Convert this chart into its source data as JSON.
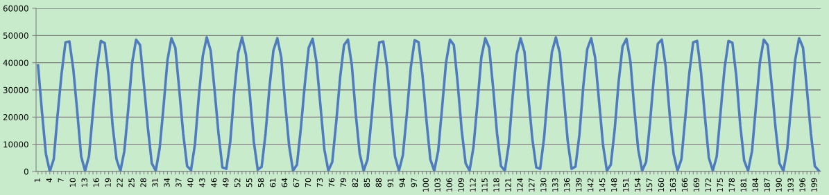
{
  "chart_data": {
    "type": "line",
    "categories": [
      "1",
      null,
      null,
      "4",
      null,
      null,
      "7",
      null,
      null,
      "10",
      null,
      null,
      "13",
      null,
      null,
      "16",
      null,
      null,
      "19",
      null,
      null,
      "22",
      null,
      null,
      "25",
      null,
      null,
      "28",
      null,
      null,
      "31",
      null,
      null,
      "34",
      null,
      null,
      "37",
      null,
      null,
      "40",
      null,
      null,
      "43",
      null,
      null,
      "46",
      null,
      null,
      "49",
      null,
      null,
      "52",
      null,
      null,
      "55",
      null,
      null,
      "58",
      null,
      null,
      "61",
      null,
      null,
      "64",
      null,
      null,
      "67",
      null,
      null,
      "70",
      null,
      null,
      "73",
      null,
      null,
      "76",
      null,
      null,
      "79",
      null,
      null,
      "82",
      null,
      null,
      "85",
      null,
      null,
      "88",
      null,
      null,
      "91",
      null,
      null,
      "94",
      null,
      null,
      "97",
      null,
      null,
      "100",
      null,
      null,
      "103",
      null,
      null,
      "106",
      null,
      null,
      "109",
      null,
      null,
      "112",
      null,
      null,
      "115",
      null,
      null,
      "118",
      null,
      null,
      "121",
      null,
      null,
      "124",
      null,
      null,
      "127",
      null,
      null,
      "130",
      null,
      null,
      "133",
      null,
      null,
      "136",
      null,
      null,
      "139",
      null,
      null,
      "142",
      null,
      null,
      "145",
      null,
      null,
      "148",
      null,
      null,
      "151",
      null,
      null,
      "154",
      null,
      null,
      "157",
      null,
      null,
      "160",
      null,
      null,
      "163",
      null,
      null,
      "166",
      null,
      null,
      "169",
      null,
      null,
      "172",
      null,
      null,
      "175",
      null,
      null,
      "178",
      null,
      null,
      "181",
      null,
      null,
      "184",
      null,
      null,
      "187",
      null,
      null,
      "190",
      null,
      null,
      "193",
      null,
      null,
      "196",
      null,
      null,
      "199",
      null
    ],
    "series": [
      {
        "color": "#4f7bbf",
        "values": [
          39000,
          22000,
          6500,
          0,
          4500,
          21000,
          36000,
          47500,
          47800,
          37500,
          22000,
          5500,
          200,
          5800,
          22000,
          38000,
          48000,
          47200,
          35000,
          17000,
          4500,
          200,
          7500,
          23000,
          40000,
          48500,
          46500,
          32000,
          16000,
          3000,
          300,
          8500,
          24000,
          41000,
          49000,
          45500,
          30000,
          14000,
          2000,
          500,
          10000,
          28000,
          42500,
          49300,
          44500,
          30000,
          14000,
          1500,
          1000,
          11000,
          29000,
          43500,
          49300,
          43000,
          28000,
          11000,
          700,
          1700,
          14000,
          31000,
          44500,
          49000,
          42000,
          25000,
          9500,
          300,
          2500,
          16000,
          32000,
          45500,
          48800,
          40000,
          24000,
          8000,
          300,
          3500,
          18000,
          34500,
          46500,
          48500,
          39000,
          21000,
          6500,
          300,
          4500,
          19500,
          36000,
          47500,
          47800,
          38000,
          21000,
          5500,
          300,
          6000,
          21000,
          38000,
          48300,
          47500,
          35500,
          19000,
          4500,
          300,
          7500,
          23500,
          40000,
          48500,
          46500,
          32000,
          15000,
          3000,
          300,
          9000,
          25000,
          42000,
          49000,
          45500,
          31000,
          14000,
          2000,
          300,
          10000,
          28000,
          43000,
          49000,
          44000,
          27500,
          12000,
          1500,
          1000,
          12500,
          30000,
          44000,
          49300,
          43500,
          28000,
          11500,
          1000,
          1800,
          13500,
          31500,
          45000,
          49000,
          42000,
          26000,
          10000,
          300,
          2500,
          15500,
          33000,
          46000,
          48800,
          40500,
          23000,
          8000,
          300,
          3500,
          18000,
          35000,
          47000,
          48500,
          38500,
          21000,
          6500,
          300,
          4500,
          20000,
          36000,
          47500,
          48000,
          36500,
          20000,
          5000,
          300,
          5500,
          22000,
          38000,
          48000,
          47300,
          35000,
          17000,
          4000,
          300,
          7500,
          24000,
          40000,
          48500,
          46500,
          32000,
          16000,
          3000,
          200,
          8500,
          25000,
          41000,
          49000,
          45500,
          30000,
          14000,
          2000,
          300
        ]
      }
    ],
    "ylim": [
      0,
      60000
    ],
    "yticks": [
      0,
      10000,
      20000,
      30000,
      40000,
      50000,
      60000
    ],
    "grid": "y",
    "marker": "none",
    "line_style": "solid"
  }
}
